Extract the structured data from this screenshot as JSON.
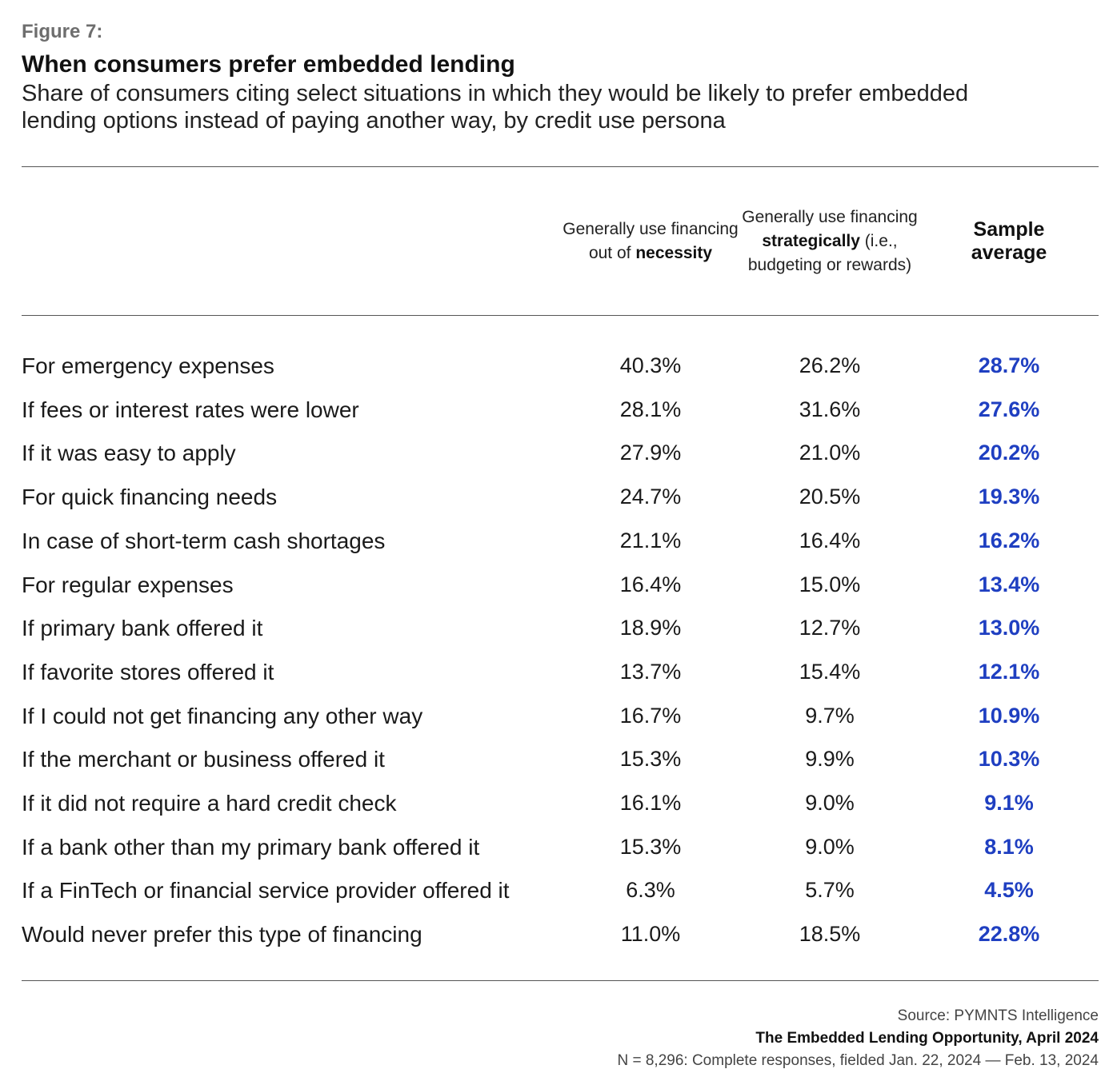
{
  "figure_label": "Figure 7:",
  "title": "When consumers prefer embedded lending",
  "subtitle": "Share of consumers citing select situations in which they would be likely to prefer embedded lending options instead of paying another way, by credit use persona",
  "columns": {
    "necessity": {
      "pre": "Generally use financing out of ",
      "emph": "necessity",
      "post": ""
    },
    "strategic": {
      "pre": "Generally use financing ",
      "emph": "strategically",
      "post": " (i.e., budgeting or rewards)"
    },
    "average": {
      "label": "Sample average"
    }
  },
  "colors": {
    "accent": "#1f3fc1",
    "rule": "#555555",
    "label": "#6e6e6e"
  },
  "chart_data": {
    "type": "table",
    "title": "When consumers prefer embedded lending",
    "columns": [
      "Generally use financing out of necessity",
      "Generally use financing strategically (i.e., budgeting or rewards)",
      "Sample average"
    ],
    "rows": [
      {
        "label": "For emergency expenses",
        "values": [
          "40.3%",
          "26.2%",
          "28.7%"
        ]
      },
      {
        "label": "If fees or interest rates were lower",
        "values": [
          "28.1%",
          "31.6%",
          "27.6%"
        ]
      },
      {
        "label": "If it was easy to apply",
        "values": [
          "27.9%",
          "21.0%",
          "20.2%"
        ]
      },
      {
        "label": "For quick financing needs",
        "values": [
          "24.7%",
          "20.5%",
          "19.3%"
        ]
      },
      {
        "label": "In case of short-term cash shortages",
        "values": [
          "21.1%",
          "16.4%",
          "16.2%"
        ]
      },
      {
        "label": "For regular expenses",
        "values": [
          "16.4%",
          "15.0%",
          "13.4%"
        ]
      },
      {
        "label": "If primary bank offered it",
        "values": [
          "18.9%",
          "12.7%",
          "13.0%"
        ]
      },
      {
        "label": "If favorite stores offered it",
        "values": [
          "13.7%",
          "15.4%",
          "12.1%"
        ]
      },
      {
        "label": "If I could not get financing any other way",
        "values": [
          "16.7%",
          "9.7%",
          "10.9%"
        ]
      },
      {
        "label": "If the merchant or business offered it",
        "values": [
          "15.3%",
          "9.9%",
          "10.3%"
        ]
      },
      {
        "label": "If it did not require a hard credit check",
        "values": [
          "16.1%",
          "9.0%",
          "9.1%"
        ]
      },
      {
        "label": "If a bank other than my primary bank offered it",
        "values": [
          "15.3%",
          "9.0%",
          "8.1%"
        ]
      },
      {
        "label": "If a FinTech or financial service provider offered it",
        "values": [
          "6.3%",
          "5.7%",
          "4.5%"
        ]
      },
      {
        "label": "Would never prefer this type of financing",
        "values": [
          "11.0%",
          "18.5%",
          "22.8%"
        ]
      }
    ]
  },
  "source": {
    "line1": "Source: PYMNTS Intelligence",
    "line2": "The Embedded Lending Opportunity, April 2024",
    "line3": "N = 8,296: Complete responses, fielded Jan. 22, 2024 — Feb. 13, 2024"
  }
}
